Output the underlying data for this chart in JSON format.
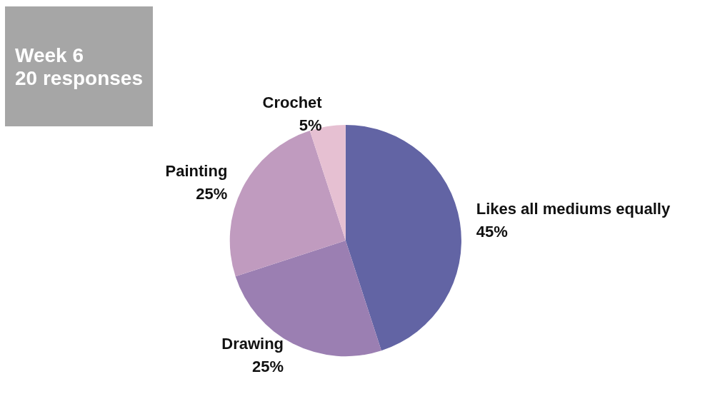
{
  "chart_data": {
    "type": "pie",
    "title": "Week 6",
    "subtitle": "20 responses",
    "categories": [
      "Likes all mediums equally",
      "Drawing",
      "Painting",
      "Crochet"
    ],
    "values": [
      45,
      25,
      25,
      5
    ],
    "colors": [
      "#6264a4",
      "#9b7fb2",
      "#c09bbf",
      "#e6c0d2"
    ],
    "legend": false,
    "value_labels": [
      "45%",
      "25%",
      "25%",
      "5%"
    ]
  }
}
